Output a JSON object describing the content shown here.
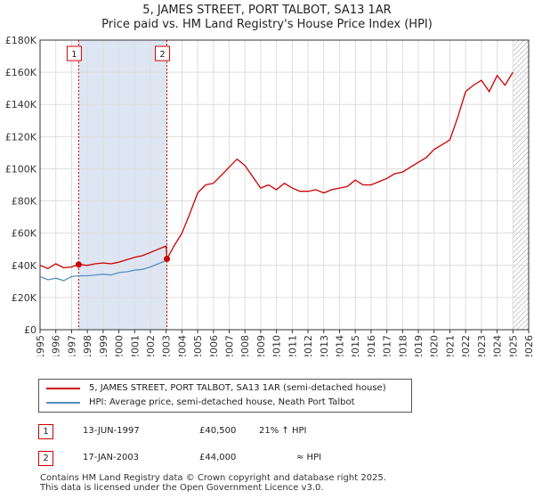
{
  "title_line1": "5, JAMES STREET, PORT TALBOT, SA13 1AR",
  "title_line2": "Price paid vs. HM Land Registry's House Price Index (HPI)",
  "legend": {
    "property": "5, JAMES STREET, PORT TALBOT, SA13 1AR (semi-detached house)",
    "hpi": "HPI: Average price, semi-detached house, Neath Port Talbot"
  },
  "sales": [
    {
      "num": "1",
      "date": "13-JUN-1997",
      "price": "£40,500",
      "relation": "21% ↑ HPI"
    },
    {
      "num": "2",
      "date": "17-JAN-2003",
      "price": "£44,000",
      "relation": "≈ HPI"
    }
  ],
  "footer": {
    "line1": "Contains HM Land Registry data © Crown copyright and database right 2025.",
    "line2": "This data is licensed under the Open Government Licence v3.0."
  },
  "colors": {
    "property_line": "#cc0000",
    "hpi_line": "#5a8fc2",
    "grid": "#dddddd",
    "marker_line": "#cc0000",
    "shade": "#dde6f2"
  },
  "chart_data": {
    "type": "line",
    "ylim": [
      0,
      180000
    ],
    "xlim": [
      1995,
      2026
    ],
    "ytick_labels": [
      "£0",
      "£20K",
      "£40K",
      "£60K",
      "£80K",
      "£100K",
      "£120K",
      "£140K",
      "£160K",
      "£180K"
    ],
    "ytick_values": [
      0,
      20000,
      40000,
      60000,
      80000,
      100000,
      120000,
      140000,
      160000,
      180000
    ],
    "xtick_labels": [
      "1995",
      "1996",
      "1997",
      "1998",
      "1999",
      "2000",
      "2001",
      "2002",
      "2003",
      "2004",
      "2005",
      "2006",
      "2007",
      "2008",
      "2009",
      "2010",
      "2011",
      "2012",
      "2013",
      "2014",
      "2015",
      "2016",
      "2017",
      "2018",
      "2019",
      "2020",
      "2021",
      "2022",
      "2023",
      "2024",
      "2025",
      "2026"
    ],
    "grid": true,
    "sale_markers": [
      {
        "label": "1",
        "x": 1997.45,
        "y": 40500
      },
      {
        "label": "2",
        "x": 2003.05,
        "y": 44000
      }
    ],
    "shaded_range": [
      1997.45,
      2003.05
    ],
    "hatched_from": 2025.0,
    "series": [
      {
        "name": "5, JAMES STREET, PORT TALBOT, SA13 1AR (semi-detached house)",
        "x": [
          1995.0,
          1995.5,
          1996.0,
          1996.5,
          1997.0,
          1997.45,
          1998.0,
          1998.5,
          1999.0,
          1999.5,
          2000.0,
          2000.5,
          2001.0,
          2001.5,
          2002.0,
          2002.5,
          2003.0,
          2003.05,
          2003.5,
          2004.0,
          2004.5,
          2005.0,
          2005.5,
          2006.0,
          2006.5,
          2007.0,
          2007.5,
          2008.0,
          2008.5,
          2009.0,
          2009.5,
          2010.0,
          2010.5,
          2011.0,
          2011.5,
          2012.0,
          2012.5,
          2013.0,
          2013.5,
          2014.0,
          2014.5,
          2015.0,
          2015.5,
          2016.0,
          2016.5,
          2017.0,
          2017.5,
          2018.0,
          2018.5,
          2019.0,
          2019.5,
          2020.0,
          2020.5,
          2021.0,
          2021.5,
          2022.0,
          2022.5,
          2023.0,
          2023.5,
          2024.0,
          2024.5,
          2025.0
        ],
        "values": [
          40000,
          38000,
          41000,
          38500,
          39000,
          40500,
          40000,
          41000,
          41500,
          41000,
          42000,
          43500,
          45000,
          46000,
          48000,
          50000,
          52000,
          44000,
          52000,
          60000,
          72000,
          85000,
          90000,
          91000,
          96000,
          101000,
          106000,
          102000,
          95000,
          88000,
          90000,
          87000,
          91000,
          88000,
          86000,
          86000,
          87000,
          85000,
          87000,
          88000,
          89000,
          93000,
          90000,
          90000,
          92000,
          94000,
          97000,
          98000,
          101000,
          104000,
          107000,
          112000,
          115000,
          118000,
          132000,
          148000,
          152000,
          155000,
          148000,
          158000,
          152000,
          160000
        ]
      },
      {
        "name": "HPI: Average price, semi-detached house, Neath Port Talbot",
        "x": [
          1995.0,
          1995.5,
          1996.0,
          1996.5,
          1997.0,
          1997.45,
          1998.0,
          1998.5,
          1999.0,
          1999.5,
          2000.0,
          2000.5,
          2001.0,
          2001.5,
          2002.0,
          2002.5,
          2003.0,
          2003.05
        ],
        "values": [
          33000,
          31000,
          32000,
          30500,
          33000,
          33500,
          33500,
          34000,
          34500,
          34000,
          35500,
          36000,
          37000,
          37500,
          39000,
          41000,
          43000,
          44000
        ]
      }
    ]
  }
}
